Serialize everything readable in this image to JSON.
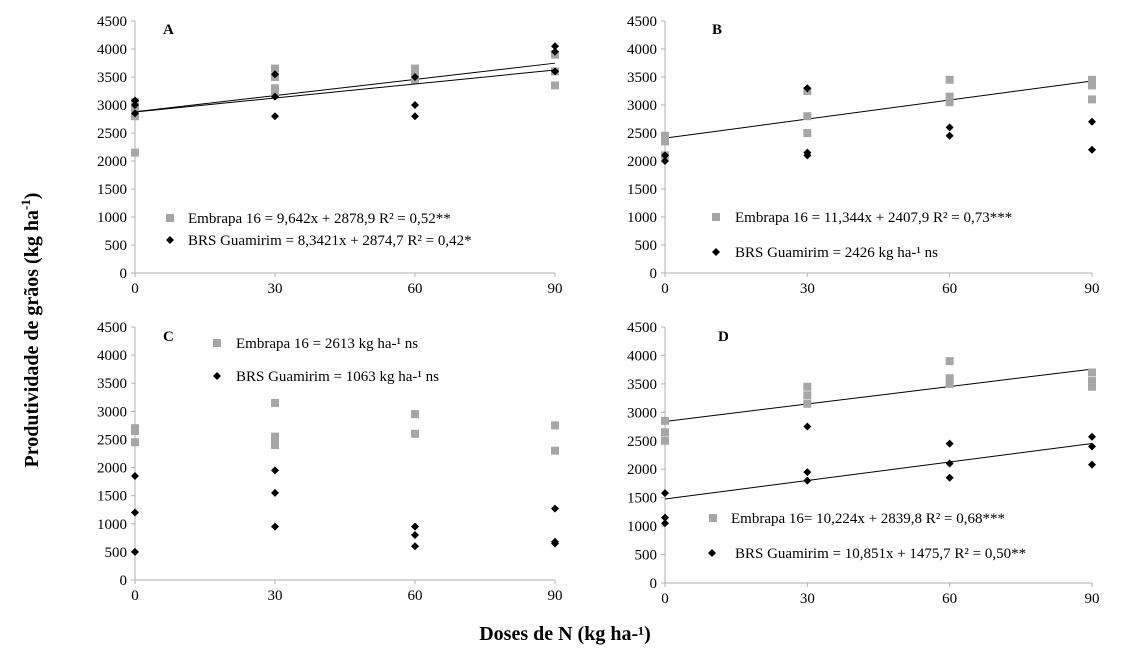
{
  "axis_titles": {
    "y": "Produtividade de grãos (kg ha",
    "y_sup": "-1",
    "y_close": ")",
    "x": "Doses de N (kg ha-¹)"
  },
  "colors": {
    "embrapa": "#a6a6a6",
    "guamirim": "#000000",
    "fit_line": "#000000",
    "axis": "#b0b0b0"
  },
  "chart_data": [
    {
      "type": "scatter",
      "panel": "A",
      "x_ticks": [
        0,
        30,
        60,
        90
      ],
      "y_ticks": [
        0,
        500,
        1000,
        1500,
        2000,
        2500,
        3000,
        3500,
        4000,
        4500
      ],
      "xlim": [
        0,
        90
      ],
      "ylim": [
        0,
        4500
      ],
      "series": [
        {
          "name": "Embrapa 16",
          "marker": "square",
          "legend": "Embrapa 16 = 9,642x + 2878,9  R² = 0,52**",
          "points": [
            [
              0,
              2150
            ],
            [
              0,
              2800
            ],
            [
              0,
              2950
            ],
            [
              0,
              3050
            ],
            [
              30,
              3200
            ],
            [
              30,
              3300
            ],
            [
              30,
              3500
            ],
            [
              30,
              3650
            ],
            [
              60,
              3450
            ],
            [
              60,
              3550
            ],
            [
              60,
              3650
            ],
            [
              90,
              3350
            ],
            [
              90,
              3600
            ],
            [
              90,
              3900
            ]
          ],
          "fit": {
            "slope": 9.642,
            "intercept": 2878.9
          }
        },
        {
          "name": "BRS Guamirim",
          "marker": "diamond",
          "legend": "BRS Guamirim = 8,3421x + 2874,7  R² = 0,42*",
          "points": [
            [
              0,
              2850
            ],
            [
              0,
              3000
            ],
            [
              0,
              3080
            ],
            [
              30,
              2800
            ],
            [
              30,
              3150
            ],
            [
              30,
              3550
            ],
            [
              60,
              2800
            ],
            [
              60,
              3000
            ],
            [
              60,
              3500
            ],
            [
              90,
              3600
            ],
            [
              90,
              3950
            ],
            [
              90,
              4050
            ]
          ],
          "fit": {
            "slope": 8.3421,
            "intercept": 2874.7
          }
        }
      ]
    },
    {
      "type": "scatter",
      "panel": "B",
      "x_ticks": [
        0,
        30,
        60,
        90
      ],
      "y_ticks": [
        0,
        500,
        1000,
        1500,
        2000,
        2500,
        3000,
        3500,
        4000,
        4500
      ],
      "xlim": [
        0,
        90
      ],
      "ylim": [
        0,
        4500
      ],
      "series": [
        {
          "name": "Embrapa 16",
          "marker": "square",
          "legend": "Embrapa 16 = 11,344x + 2407,9  R² = 0,73***",
          "points": [
            [
              0,
              2100
            ],
            [
              0,
              2350
            ],
            [
              0,
              2450
            ],
            [
              30,
              2500
            ],
            [
              30,
              2800
            ],
            [
              30,
              3250
            ],
            [
              60,
              3050
            ],
            [
              60,
              3150
            ],
            [
              60,
              3450
            ],
            [
              90,
              3100
            ],
            [
              90,
              3350
            ],
            [
              90,
              3450
            ]
          ],
          "fit": {
            "slope": 11.344,
            "intercept": 2407.9
          }
        },
        {
          "name": "BRS Guamirim",
          "marker": "diamond",
          "legend": "BRS Guamirim = 2426 kg ha-¹ ns",
          "points": [
            [
              0,
              2000
            ],
            [
              0,
              2100
            ],
            [
              30,
              2100
            ],
            [
              30,
              2150
            ],
            [
              30,
              3300
            ],
            [
              60,
              2450
            ],
            [
              60,
              2600
            ],
            [
              90,
              2200
            ],
            [
              90,
              2700
            ]
          ],
          "fit": null
        }
      ]
    },
    {
      "type": "scatter",
      "panel": "C",
      "x_ticks": [
        0,
        30,
        60,
        90
      ],
      "y_ticks": [
        0,
        500,
        1000,
        1500,
        2000,
        2500,
        3000,
        3500,
        4000,
        4500
      ],
      "xlim": [
        0,
        90
      ],
      "ylim": [
        0,
        4500
      ],
      "series": [
        {
          "name": "Embrapa 16",
          "marker": "square",
          "legend": "Embrapa 16 = 2613 kg ha-¹ ns",
          "points": [
            [
              0,
              2450
            ],
            [
              0,
              2650
            ],
            [
              0,
              2700
            ],
            [
              30,
              2400
            ],
            [
              30,
              2500
            ],
            [
              30,
              2550
            ],
            [
              30,
              3150
            ],
            [
              60,
              2600
            ],
            [
              60,
              2950
            ],
            [
              90,
              2300
            ],
            [
              90,
              2750
            ]
          ],
          "fit": null
        },
        {
          "name": "BRS Guamirim",
          "marker": "diamond",
          "legend": "BRS Guamirim = 1063 kg ha-¹ ns",
          "points": [
            [
              0,
              500
            ],
            [
              0,
              1200
            ],
            [
              0,
              1850
            ],
            [
              30,
              950
            ],
            [
              30,
              1550
            ],
            [
              30,
              1950
            ],
            [
              60,
              600
            ],
            [
              60,
              800
            ],
            [
              60,
              950
            ],
            [
              90,
              650
            ],
            [
              90,
              680
            ],
            [
              90,
              1270
            ]
          ],
          "fit": null
        }
      ]
    },
    {
      "type": "scatter",
      "panel": "D",
      "x_ticks": [
        0,
        30,
        60,
        90
      ],
      "y_ticks": [
        0,
        500,
        1000,
        1500,
        2000,
        2500,
        3000,
        3500,
        4000,
        4500
      ],
      "xlim": [
        0,
        90
      ],
      "ylim": [
        0,
        4500
      ],
      "series": [
        {
          "name": "Embrapa 16",
          "marker": "square",
          "legend": "Embrapa 16= 10,224x + 2839,8  R² = 0,68***",
          "points": [
            [
              0,
              2500
            ],
            [
              0,
              2650
            ],
            [
              0,
              2850
            ],
            [
              30,
              3150
            ],
            [
              30,
              3300
            ],
            [
              30,
              3450
            ],
            [
              60,
              3500
            ],
            [
              60,
              3600
            ],
            [
              60,
              3900
            ],
            [
              90,
              3450
            ],
            [
              90,
              3550
            ],
            [
              90,
              3700
            ]
          ],
          "fit": {
            "slope": 10.224,
            "intercept": 2839.8
          }
        },
        {
          "name": "BRS Guamirim",
          "marker": "diamond",
          "legend": "BRS Guamirim = 10,851x + 1475,7   R² = 0,50**",
          "points": [
            [
              0,
              1050
            ],
            [
              0,
              1150
            ],
            [
              0,
              1580
            ],
            [
              30,
              1800
            ],
            [
              30,
              1950
            ],
            [
              30,
              2750
            ],
            [
              60,
              1850
            ],
            [
              60,
              2100
            ],
            [
              60,
              2450
            ],
            [
              90,
              2080
            ],
            [
              90,
              2400
            ],
            [
              90,
              2570
            ]
          ],
          "fit": {
            "slope": 10.851,
            "intercept": 1475.7
          }
        }
      ]
    }
  ]
}
